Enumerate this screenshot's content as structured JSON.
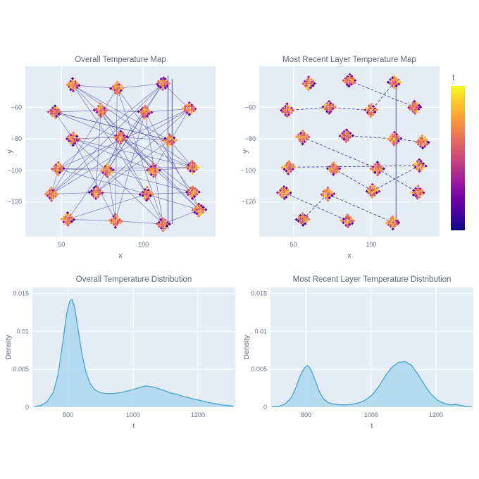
{
  "page": {
    "background": "#ffffff"
  },
  "theme": {
    "plot_bg": "#e5ecf6",
    "grid_color": "#ffffff",
    "title_color": "#5d6878",
    "tick_color": "#67748c",
    "map_line_color": "#2b2b9e",
    "density_fill": "#a6d6ec",
    "density_stroke": "#46a5d5",
    "plasma_stops": [
      "#0d0887",
      "#46039f",
      "#7201a8",
      "#9c179e",
      "#bd3786",
      "#d8576b",
      "#ed7953",
      "#fb9f3a",
      "#fdca26",
      "#f0f921"
    ]
  },
  "colorbar": {
    "label": "t"
  },
  "chart_data": [
    {
      "type": "scatter",
      "title": "Overall Temperature Map",
      "xlabel": "x",
      "ylabel": "y",
      "xlim": [
        28,
        144
      ],
      "ylim": [
        -142,
        -34
      ],
      "xticks": [
        50,
        100
      ],
      "xtick_labels": [
        "50",
        "100"
      ],
      "yticks": [
        -60,
        -80,
        -100,
        -120
      ],
      "ytick_labels": [
        "−60",
        "−80",
        "−100",
        "−120"
      ],
      "grid": true,
      "legend": "none",
      "clusters": [
        [
          57,
          -46
        ],
        [
          84,
          -48
        ],
        [
          112,
          -45
        ],
        [
          46,
          -63
        ],
        [
          74,
          -62
        ],
        [
          101,
          -63
        ],
        [
          128,
          -61
        ],
        [
          57,
          -80
        ],
        [
          86,
          -79
        ],
        [
          116,
          -81
        ],
        [
          48,
          -99
        ],
        [
          78,
          -100
        ],
        [
          106,
          -100
        ],
        [
          130,
          -98
        ],
        [
          44,
          -115
        ],
        [
          71,
          -114
        ],
        [
          102,
          -115
        ],
        [
          130,
          -114
        ],
        [
          54,
          -131
        ],
        [
          83,
          -132
        ],
        [
          112,
          -134
        ],
        [
          134,
          -125
        ]
      ],
      "routes": [
        [
          0,
          1,
          2,
          6,
          5,
          4,
          3,
          7,
          8,
          9,
          13,
          12,
          11,
          10,
          14,
          15,
          16,
          17,
          21,
          20,
          19,
          18
        ],
        [
          3,
          9,
          0,
          12,
          6,
          14,
          2,
          11,
          17,
          1,
          19,
          5,
          21,
          8,
          15,
          4,
          20,
          7,
          13,
          10,
          16,
          18
        ],
        [
          18,
          2,
          10,
          6,
          15,
          9,
          3,
          13,
          0,
          16,
          21,
          4,
          12,
          7,
          19,
          11,
          5,
          20,
          1,
          14,
          8,
          17
        ]
      ],
      "segments": [
        [
          115,
          -40,
          115,
          -137
        ],
        [
          117.5,
          -42,
          117.5,
          -134
        ]
      ],
      "dash": false,
      "seed": 7
    },
    {
      "type": "scatter",
      "title": "Most Recent Layer Temperature Map",
      "xlabel": "x",
      "ylabel": "y",
      "xlim": [
        28,
        144
      ],
      "ylim": [
        -142,
        -34
      ],
      "xticks": [
        50,
        100
      ],
      "xtick_labels": [
        "50",
        "100"
      ],
      "yticks": [
        -60,
        -80,
        -100,
        -120
      ],
      "ytick_labels": [
        "−60",
        "−80",
        "−100",
        "−120"
      ],
      "grid": true,
      "legend": "none",
      "clusters": [
        [
          60,
          -45
        ],
        [
          86,
          -43
        ],
        [
          115,
          -44
        ],
        [
          46,
          -62
        ],
        [
          73,
          -60
        ],
        [
          100,
          -62
        ],
        [
          128,
          -60
        ],
        [
          56,
          -79
        ],
        [
          84,
          -78
        ],
        [
          115,
          -80
        ],
        [
          133,
          -82
        ],
        [
          47,
          -98
        ],
        [
          76,
          -99
        ],
        [
          104,
          -99
        ],
        [
          131,
          -97
        ],
        [
          44,
          -114
        ],
        [
          72,
          -115
        ],
        [
          101,
          -113
        ],
        [
          130,
          -114
        ],
        [
          56,
          -131
        ],
        [
          85,
          -132
        ],
        [
          114,
          -133
        ]
      ],
      "routes": [
        [
          3,
          4
        ],
        [
          4,
          5
        ],
        [
          1,
          6
        ],
        [
          8,
          9
        ],
        [
          9,
          10
        ],
        [
          11,
          14
        ],
        [
          7,
          13
        ],
        [
          15,
          20
        ],
        [
          16,
          21
        ],
        [
          19,
          16
        ],
        [
          12,
          17
        ],
        [
          17,
          14
        ],
        [
          2,
          5
        ],
        [
          13,
          18
        ]
      ],
      "segments": [
        [
          116,
          -44,
          116,
          -133
        ]
      ],
      "dash": true,
      "seed": 31
    },
    {
      "type": "area",
      "title": "Overall Temperature Distribution",
      "xlabel": "t",
      "ylabel": "Density",
      "xlim": [
        690,
        1315
      ],
      "ylim": [
        0,
        0.0158
      ],
      "xticks": [
        800,
        1000,
        1200
      ],
      "xtick_labels": [
        "800",
        "1000",
        "1200"
      ],
      "yticks": [
        0,
        0.005,
        0.01,
        0.015
      ],
      "ytick_labels": [
        "0",
        "0.005",
        "0.01",
        "0.015"
      ],
      "grid": true,
      "legend": "none",
      "curve": [
        [
          695,
          5e-05
        ],
        [
          715,
          0.0002
        ],
        [
          735,
          0.0007
        ],
        [
          755,
          0.002
        ],
        [
          770,
          0.0045
        ],
        [
          785,
          0.009
        ],
        [
          795,
          0.0122
        ],
        [
          805,
          0.014
        ],
        [
          812,
          0.0142
        ],
        [
          820,
          0.0132
        ],
        [
          830,
          0.0105
        ],
        [
          842,
          0.0072
        ],
        [
          855,
          0.0046
        ],
        [
          868,
          0.0031
        ],
        [
          882,
          0.0023
        ],
        [
          900,
          0.0019
        ],
        [
          920,
          0.0018
        ],
        [
          940,
          0.0018
        ],
        [
          960,
          0.0019
        ],
        [
          980,
          0.0021
        ],
        [
          1000,
          0.0023
        ],
        [
          1020,
          0.0026
        ],
        [
          1040,
          0.0028
        ],
        [
          1058,
          0.0027
        ],
        [
          1075,
          0.0025
        ],
        [
          1095,
          0.0022
        ],
        [
          1115,
          0.0019
        ],
        [
          1135,
          0.0017
        ],
        [
          1155,
          0.0014
        ],
        [
          1175,
          0.0012
        ],
        [
          1195,
          0.001
        ],
        [
          1215,
          0.0008
        ],
        [
          1235,
          0.0006
        ],
        [
          1255,
          0.00045
        ],
        [
          1275,
          0.0003
        ],
        [
          1295,
          0.0002
        ],
        [
          1310,
          0.00012
        ]
      ]
    },
    {
      "type": "area",
      "title": "Most Recent Layer Temperature Distribution",
      "xlabel": "t",
      "ylabel": "Density",
      "xlim": [
        690,
        1315
      ],
      "ylim": [
        0,
        0.0158
      ],
      "xticks": [
        800,
        1000,
        1200
      ],
      "xtick_labels": [
        "800",
        "1000",
        "1200"
      ],
      "yticks": [
        0,
        0.005,
        0.01,
        0.015
      ],
      "ytick_labels": [
        "0",
        "0.005",
        "0.01",
        "0.015"
      ],
      "grid": true,
      "legend": "none",
      "curve": [
        [
          695,
          3e-05
        ],
        [
          715,
          0.0001
        ],
        [
          735,
          0.0004
        ],
        [
          755,
          0.0013
        ],
        [
          770,
          0.0028
        ],
        [
          782,
          0.0042
        ],
        [
          795,
          0.0052
        ],
        [
          805,
          0.0055
        ],
        [
          815,
          0.0049
        ],
        [
          827,
          0.0036
        ],
        [
          840,
          0.0021
        ],
        [
          853,
          0.0011
        ],
        [
          868,
          0.0006
        ],
        [
          885,
          0.0004
        ],
        [
          905,
          0.0003
        ],
        [
          925,
          0.0003
        ],
        [
          945,
          0.0004
        ],
        [
          965,
          0.0006
        ],
        [
          985,
          0.001
        ],
        [
          1005,
          0.0017
        ],
        [
          1025,
          0.0028
        ],
        [
          1045,
          0.0042
        ],
        [
          1065,
          0.0053
        ],
        [
          1085,
          0.0059
        ],
        [
          1105,
          0.006
        ],
        [
          1125,
          0.0055
        ],
        [
          1145,
          0.0043
        ],
        [
          1165,
          0.0029
        ],
        [
          1185,
          0.0017
        ],
        [
          1205,
          0.0009
        ],
        [
          1225,
          0.0005
        ],
        [
          1245,
          0.0003
        ],
        [
          1262,
          0.00035
        ],
        [
          1278,
          0.0002
        ],
        [
          1295,
          0.0001
        ],
        [
          1310,
          5e-05
        ]
      ]
    }
  ]
}
